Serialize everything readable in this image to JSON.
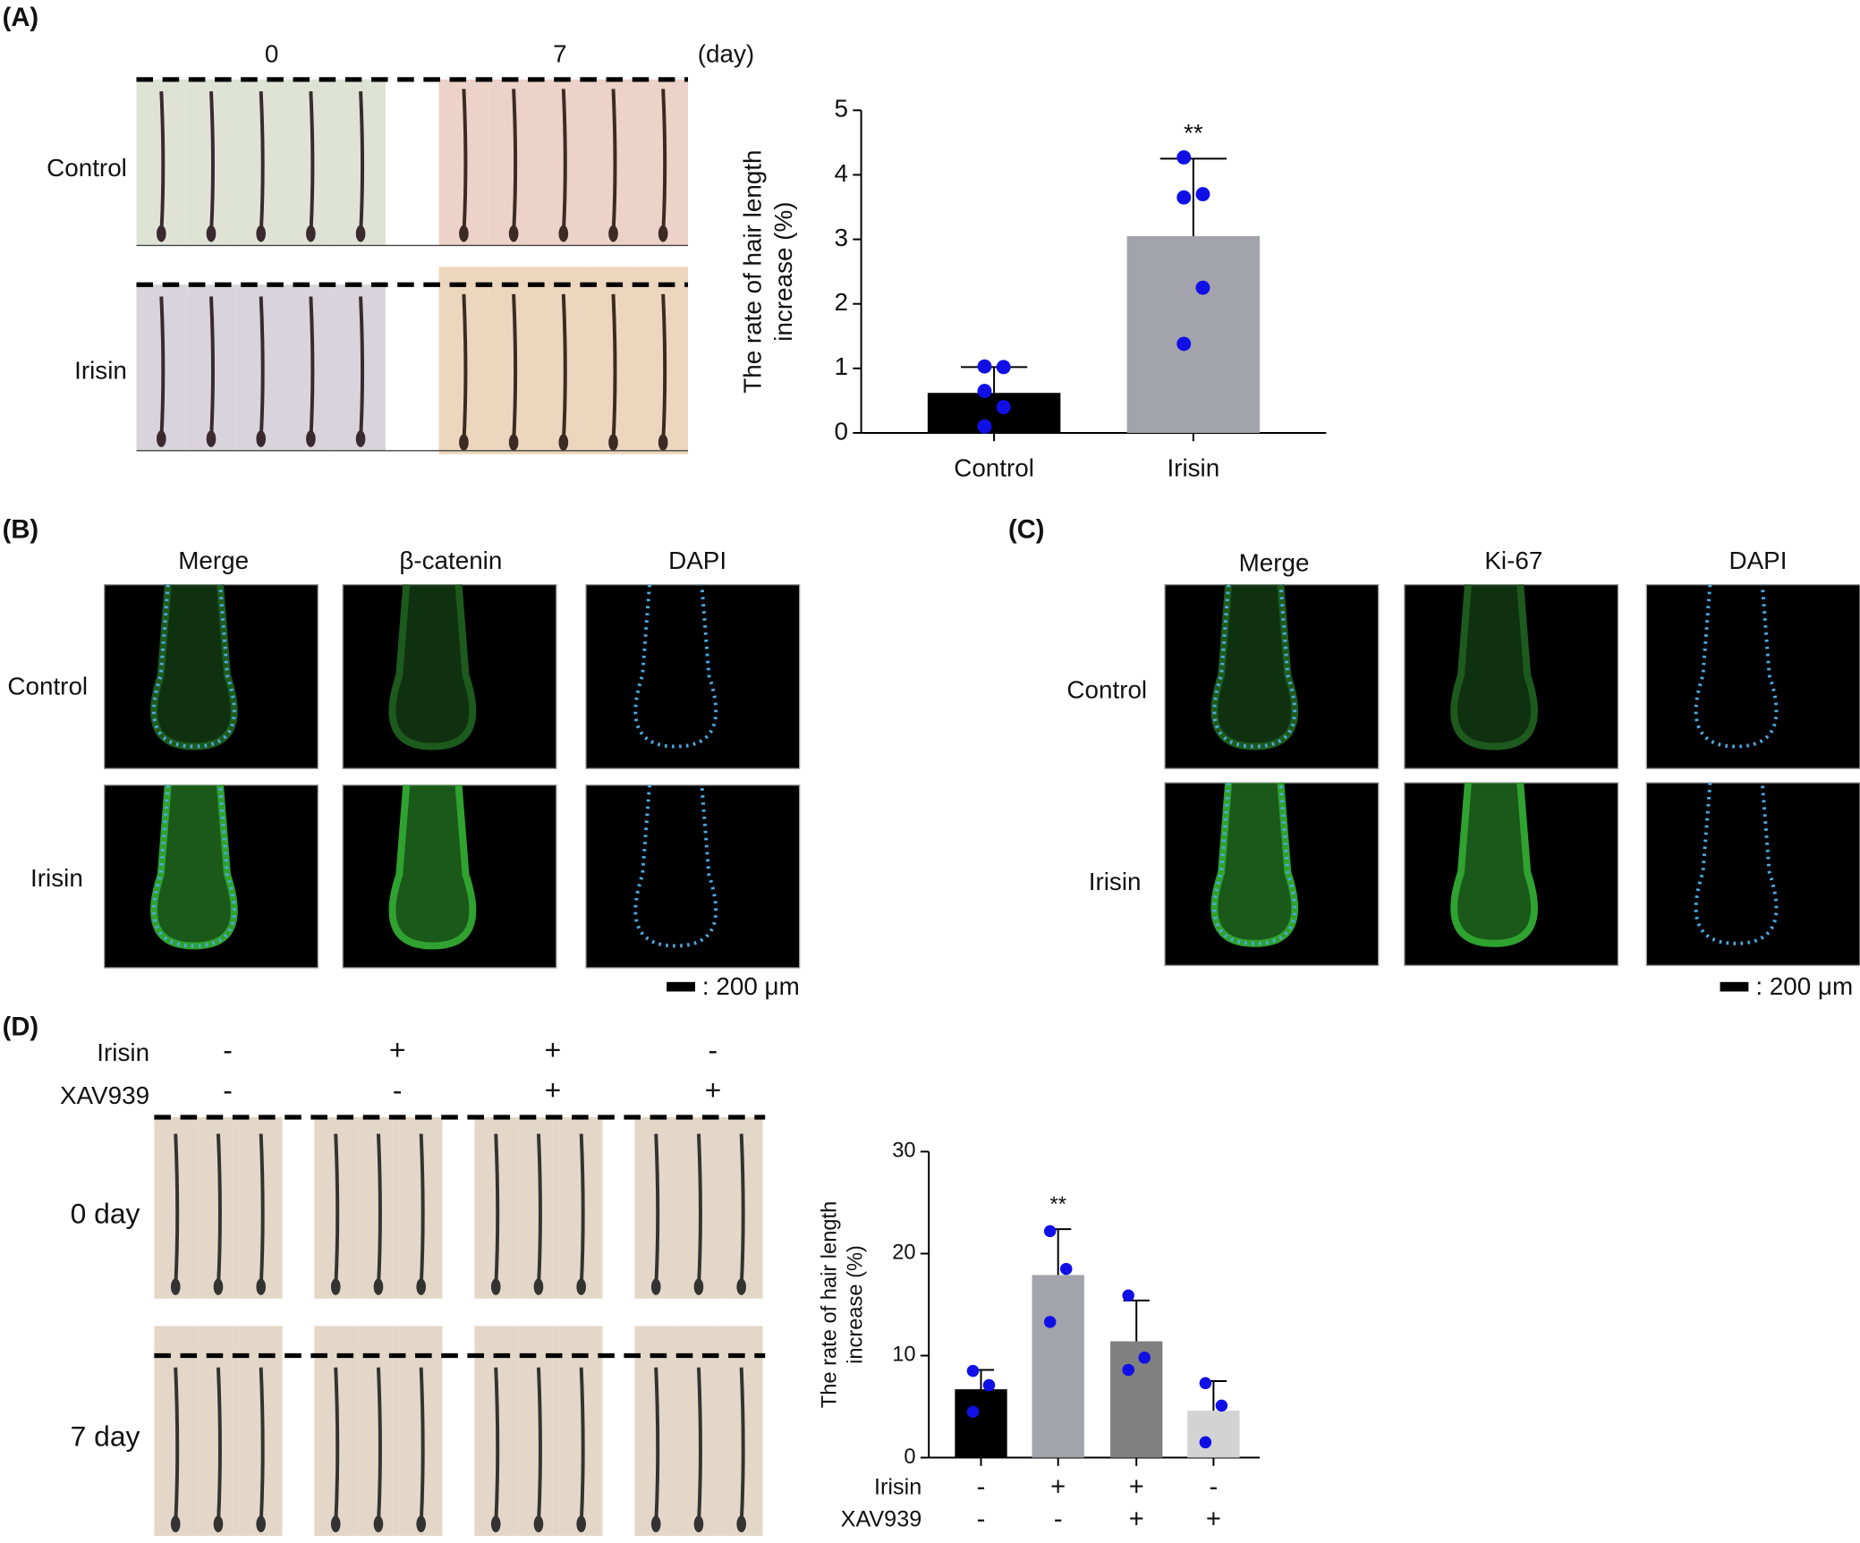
{
  "panels": {
    "a": {
      "label": "(A)",
      "days": [
        "0",
        "7"
      ],
      "day_unit": "(day)",
      "rows": [
        "Control",
        "Irisin"
      ]
    },
    "b": {
      "label": "(B)",
      "columns": [
        "Merge",
        "β-catenin",
        "DAPI"
      ],
      "rows": [
        "Control",
        "Irisin"
      ],
      "scale": ": 200 μm"
    },
    "c": {
      "label": "(C)",
      "columns": [
        "Merge",
        "Ki-67",
        "DAPI"
      ],
      "rows": [
        "Control",
        "Irisin"
      ],
      "scale": ": 200 μm"
    },
    "d": {
      "label": "(D)",
      "treatments": [
        {
          "name": "Irisin",
          "signs": [
            "-",
            "+",
            "+",
            "-"
          ]
        },
        {
          "name": "XAV939",
          "signs": [
            "-",
            "-",
            "+",
            "+"
          ]
        }
      ],
      "rows": [
        "0 day",
        "7 day"
      ]
    }
  },
  "chart_data": [
    {
      "type": "bar",
      "ylabel": [
        "The rate of hair length",
        "increase (%)"
      ],
      "categories": [
        "Control",
        "Irisin"
      ],
      "values": [
        0.62,
        3.05
      ],
      "errors": [
        0.4,
        1.2
      ],
      "points": [
        [
          1.03,
          1.02,
          0.65,
          0.4,
          0.1
        ],
        [
          4.27,
          3.7,
          3.65,
          2.25,
          1.38
        ]
      ],
      "colors": [
        "#000000",
        "#a3a3ab"
      ],
      "point_color": "#1010e6",
      "value_annotations": [
        null,
        "**"
      ],
      "ylim": [
        0,
        5
      ],
      "yticks": [
        0,
        1,
        2,
        3,
        4,
        5
      ]
    },
    {
      "type": "bar",
      "ylabel": [
        "The rate of hair length",
        "increase (%)"
      ],
      "condition_rows": [
        {
          "name": "Irisin",
          "signs": [
            "-",
            "+",
            "+",
            "-"
          ]
        },
        {
          "name": "XAV939",
          "signs": [
            "-",
            "-",
            "+",
            "+"
          ]
        }
      ],
      "values": [
        6.7,
        17.9,
        11.4,
        4.6
      ],
      "errors": [
        1.9,
        4.5,
        4.0,
        2.9
      ],
      "points": [
        [
          8.5,
          7.1,
          4.5
        ],
        [
          22.2,
          18.5,
          13.3
        ],
        [
          15.9,
          9.8,
          8.6
        ],
        [
          7.3,
          5.1,
          1.5
        ]
      ],
      "colors": [
        "#000000",
        "#a3a3ab",
        "#808080",
        "#d3d3d3"
      ],
      "point_color": "#1010e6",
      "value_annotations": [
        null,
        "**",
        null,
        null
      ],
      "ylim": [
        0,
        30
      ],
      "yticks": [
        0,
        10,
        20,
        30
      ]
    }
  ]
}
